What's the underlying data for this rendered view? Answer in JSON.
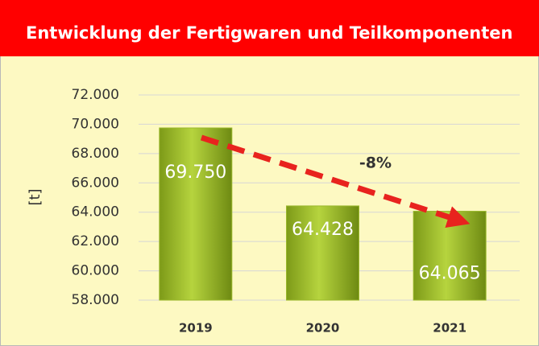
{
  "chart_data": {
    "type": "bar",
    "title": "Entwicklung der Fertigwaren und Teilkomponenten",
    "y_label": "[t]",
    "annotation": "-8%",
    "categories": [
      "2019",
      "2020",
      "2021"
    ],
    "values": [
      69750,
      64428,
      64065
    ],
    "value_labels": [
      "69.750",
      "64.428",
      "64.065"
    ],
    "color": "#9ab82c",
    "ylim": [
      58000,
      72000
    ],
    "yticks": [
      {
        "value": 58000,
        "label": "58.000"
      },
      {
        "value": 60000,
        "label": "60.000"
      },
      {
        "value": 62000,
        "label": "62.000"
      },
      {
        "value": 64000,
        "label": "64.000"
      },
      {
        "value": 66000,
        "label": "66.000"
      },
      {
        "value": 68000,
        "label": "68.000"
      },
      {
        "value": 70000,
        "label": "70.000"
      },
      {
        "value": 72000,
        "label": "72.000"
      }
    ],
    "grid": true
  }
}
